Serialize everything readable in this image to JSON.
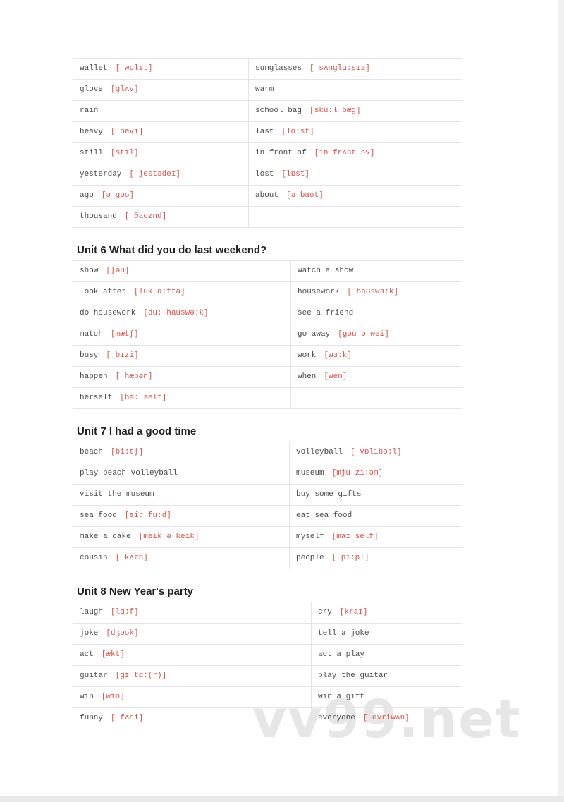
{
  "watermark": {
    "text": "vv99.net"
  },
  "phonetic_color": "#d9544e",
  "sections": [
    {
      "heading": "",
      "rows": [
        {
          "left": {
            "word": "wallet",
            "phonetic": "[ wɒlɪt]"
          },
          "right": {
            "word": "sunglasses",
            "phonetic": "[ sʌnglɑ:sɪz]"
          }
        },
        {
          "left": {
            "word": "glove",
            "phonetic": "[glʌv]"
          },
          "right": {
            "word": "warm",
            "phonetic": ""
          }
        },
        {
          "left": {
            "word": "rain",
            "phonetic": ""
          },
          "right": {
            "word": "school bag",
            "phonetic": "[sku:l bæg]"
          }
        },
        {
          "left": {
            "word": "heavy",
            "phonetic": "[ hevi]"
          },
          "right": {
            "word": "last",
            "phonetic": "[lɑ:st]"
          }
        },
        {
          "left": {
            "word": "still",
            "phonetic": "[stɪl]"
          },
          "right": {
            "word": "in front of",
            "phonetic": "[in frʌnt ɔv]"
          }
        },
        {
          "left": {
            "word": "yesterday",
            "phonetic": "[ jestədeɪ]"
          },
          "right": {
            "word": "lost",
            "phonetic": "[lɒst]"
          }
        },
        {
          "left": {
            "word": "ago",
            "phonetic": "[ə gəʊ]"
          },
          "right": {
            "word": "about",
            "phonetic": "[ə baʊt]"
          }
        },
        {
          "left": {
            "word": "thousand",
            "phonetic": "[ θaʊznd]"
          },
          "right": null
        }
      ]
    },
    {
      "heading": "Unit 6 What did you do last weekend?",
      "rows": [
        {
          "left": {
            "word": "show",
            "phonetic": "[ʃəʊ]"
          },
          "right": {
            "word": "watch a show",
            "phonetic": ""
          }
        },
        {
          "left": {
            "word": "look after",
            "phonetic": "[luk ɑ:ftə]"
          },
          "right": {
            "word": "housework",
            "phonetic": "[ haʊswɜ:k]"
          }
        },
        {
          "left": {
            "word": "do housework",
            "phonetic": "[du: hauswə:k]"
          },
          "right": {
            "word": "see a friend",
            "phonetic": ""
          }
        },
        {
          "left": {
            "word": "match",
            "phonetic": "[mætʃ]"
          },
          "right": {
            "word": "go away",
            "phonetic": "[gəu ə wei]"
          }
        },
        {
          "left": {
            "word": "busy",
            "phonetic": "[ bɪzi]"
          },
          "right": {
            "word": "work",
            "phonetic": "[wɜ:k]"
          }
        },
        {
          "left": {
            "word": "happen",
            "phonetic": "[ hæpən]"
          },
          "right": {
            "word": "when",
            "phonetic": "[wen]"
          }
        },
        {
          "left": {
            "word": "herself",
            "phonetic": "[hə: self]"
          },
          "right": null
        }
      ]
    },
    {
      "heading": "Unit 7 I had a good time",
      "rows": [
        {
          "left": {
            "word": "beach",
            "phonetic": "[bi:tʃ]"
          },
          "right": {
            "word": "volleyball",
            "phonetic": "[ vɒlibɔ:l]"
          }
        },
        {
          "left": {
            "word": "play beach volleyball",
            "phonetic": ""
          },
          "right": {
            "word": "museum",
            "phonetic": "[mju zi:əm]"
          }
        },
        {
          "left": {
            "word": "visit the museum",
            "phonetic": ""
          },
          "right": {
            "word": "buy some gifts",
            "phonetic": ""
          }
        },
        {
          "left": {
            "word": "sea food",
            "phonetic": "[si: fu:d]"
          },
          "right": {
            "word": "eat sea food",
            "phonetic": ""
          }
        },
        {
          "left": {
            "word": "make a cake",
            "phonetic": "[meik ə keik]"
          },
          "right": {
            "word": "myself",
            "phonetic": "[maɪ self]"
          }
        },
        {
          "left": {
            "word": "cousin",
            "phonetic": "[ kʌzn]"
          },
          "right": {
            "word": "people",
            "phonetic": "[ pi:pl]"
          }
        }
      ]
    },
    {
      "heading": "Unit 8 New Year's party",
      "rows": [
        {
          "left": {
            "word": "laugh",
            "phonetic": "[lɑ:f]"
          },
          "right": {
            "word": "cry",
            "phonetic": "[kraɪ]"
          }
        },
        {
          "left": {
            "word": "joke",
            "phonetic": "[dʒəʊk]"
          },
          "right": {
            "word": "tell a joke",
            "phonetic": ""
          }
        },
        {
          "left": {
            "word": "act",
            "phonetic": "[ækt]"
          },
          "right": {
            "word": "act a play",
            "phonetic": ""
          }
        },
        {
          "left": {
            "word": "guitar",
            "phonetic": "[gɪ tɑ:(r)]"
          },
          "right": {
            "word": "play the guitar",
            "phonetic": ""
          }
        },
        {
          "left": {
            "word": "win",
            "phonetic": "[wɪn]"
          },
          "right": {
            "word": "win a gift",
            "phonetic": ""
          }
        },
        {
          "left": {
            "word": "funny",
            "phonetic": "[ fʌni]"
          },
          "right": {
            "word": "everyone",
            "phonetic": "[ evriwʌn]"
          }
        }
      ]
    }
  ]
}
